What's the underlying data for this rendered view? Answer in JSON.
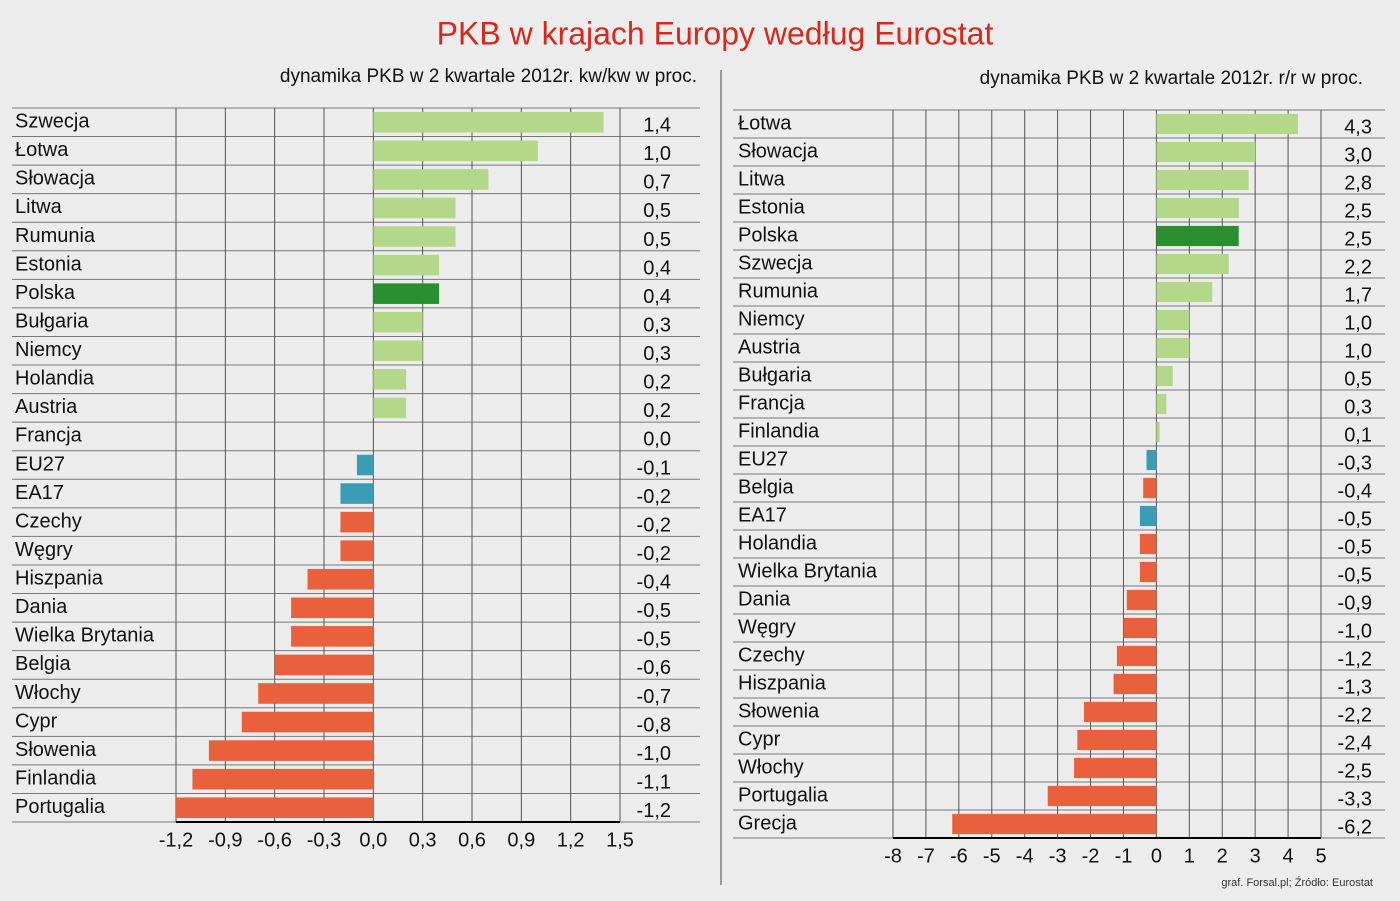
{
  "title": "PKB w krajach Europy według Eurostat",
  "source": "graf. Forsal.pl; Źródło: Eurostat",
  "chart_data": [
    {
      "type": "barh",
      "subtitle": "dynamika PKB w 2 kwartale 2012r.  kw/kw w proc.",
      "categories": [
        "Szwecja",
        "Łotwa",
        "Słowacja",
        "Litwa",
        "Rumunia",
        "Estonia",
        "Polska",
        "Bułgaria",
        "Niemcy",
        "Holandia",
        "Austria",
        "Francja",
        "EU27",
        "EA17",
        "Czechy",
        "Węgry",
        "Hiszpania",
        "Dania",
        "Wielka Brytania",
        "Belgia",
        "Włochy",
        "Cypr",
        "Słowenia",
        "Finlandia",
        "Portugalia"
      ],
      "values": [
        1.4,
        1.0,
        0.7,
        0.5,
        0.5,
        0.4,
        0.4,
        0.3,
        0.3,
        0.2,
        0.2,
        0.0,
        -0.1,
        -0.2,
        -0.2,
        -0.2,
        -0.4,
        -0.5,
        -0.5,
        -0.6,
        -0.7,
        -0.8,
        -1.0,
        -1.1,
        -1.2
      ],
      "value_labels": [
        "1,4",
        "1,0",
        "0,7",
        "0,5",
        "0,5",
        "0,4",
        "0,4",
        "0,3",
        "0,3",
        "0,2",
        "0,2",
        "0,0",
        "-0,1",
        "-0,2",
        "-0,2",
        "-0,2",
        "-0,4",
        "-0,5",
        "-0,5",
        "-0,6",
        "-0,7",
        "-0,8",
        "-1,0",
        "-1,1",
        "-1,2"
      ],
      "colors": [
        "#b3d88a",
        "#b3d88a",
        "#b3d88a",
        "#b3d88a",
        "#b3d88a",
        "#b3d88a",
        "#2a8f2e",
        "#b3d88a",
        "#b3d88a",
        "#b3d88a",
        "#b3d88a",
        "#b3d88a",
        "#3a9db5",
        "#3a9db5",
        "#e8603c",
        "#e8603c",
        "#e8603c",
        "#e8603c",
        "#e8603c",
        "#e8603c",
        "#e8603c",
        "#e8603c",
        "#e8603c",
        "#e8603c",
        "#e8603c"
      ],
      "xlim": [
        -1.2,
        1.5
      ],
      "xticks": [
        {
          "value": -1.2,
          "label": "-1,2"
        },
        {
          "value": -0.9,
          "label": "-0,9"
        },
        {
          "value": -0.6,
          "label": "-0,6"
        },
        {
          "value": -0.3,
          "label": "-0,3"
        },
        {
          "value": 0,
          "label": "0,0"
        },
        {
          "value": 0.3,
          "label": "0,3"
        },
        {
          "value": 0.6,
          "label": "0,6"
        },
        {
          "value": 0.9,
          "label": "0,9"
        },
        {
          "value": 1.2,
          "label": "1,2"
        },
        {
          "value": 1.5,
          "label": "1,5"
        }
      ]
    },
    {
      "type": "barh",
      "subtitle": "dynamika PKB w 2 kwartale 2012r.  r/r w proc.",
      "categories": [
        "Łotwa",
        "Słowacja",
        "Litwa",
        "Estonia",
        "Polska",
        "Szwecja",
        "Rumunia",
        "Niemcy",
        "Austria",
        "Bułgaria",
        "Francja",
        "Finlandia",
        "EU27",
        "Belgia",
        "EA17",
        "Holandia",
        "Wielka Brytania",
        "Dania",
        "Węgry",
        "Czechy",
        "Hiszpania",
        "Słowenia",
        "Cypr",
        "Włochy",
        "Portugalia",
        "Grecja"
      ],
      "values": [
        4.3,
        3.0,
        2.8,
        2.5,
        2.5,
        2.2,
        1.7,
        1.0,
        1.0,
        0.5,
        0.3,
        0.1,
        -0.3,
        -0.4,
        -0.5,
        -0.5,
        -0.5,
        -0.9,
        -1.0,
        -1.2,
        -1.3,
        -2.2,
        -2.4,
        -2.5,
        -3.3,
        -6.2
      ],
      "value_labels": [
        "4,3",
        "3,0",
        "2,8",
        "2,5",
        "2,5",
        "2,2",
        "1,7",
        "1,0",
        "1,0",
        "0,5",
        "0,3",
        "0,1",
        "-0,3",
        "-0,4",
        "-0,5",
        "-0,5",
        "-0,5",
        "-0,9",
        "-1,0",
        "-1,2",
        "-1,3",
        "-2,2",
        "-2,4",
        "-2,5",
        "-3,3",
        "-6,2"
      ],
      "colors": [
        "#b3d88a",
        "#b3d88a",
        "#b3d88a",
        "#b3d88a",
        "#2a8f2e",
        "#b3d88a",
        "#b3d88a",
        "#b3d88a",
        "#b3d88a",
        "#b3d88a",
        "#b3d88a",
        "#b3d88a",
        "#3a9db5",
        "#e8603c",
        "#3a9db5",
        "#e8603c",
        "#e8603c",
        "#e8603c",
        "#e8603c",
        "#e8603c",
        "#e8603c",
        "#e8603c",
        "#e8603c",
        "#e8603c",
        "#e8603c",
        "#e8603c"
      ],
      "xlim": [
        -8,
        5
      ],
      "xticks": [
        -8,
        -7,
        -6,
        -5,
        -4,
        -3,
        -2,
        -1,
        0,
        1,
        2,
        3,
        4,
        5
      ]
    }
  ]
}
